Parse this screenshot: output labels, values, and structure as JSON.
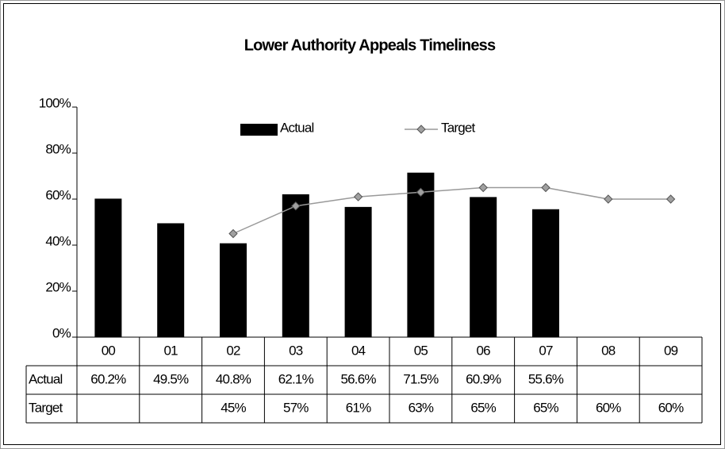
{
  "chart_data": {
    "type": "bar",
    "title": "Lower Authority Appeals Timeliness",
    "categories": [
      "00",
      "01",
      "02",
      "03",
      "04",
      "05",
      "06",
      "07",
      "08",
      "09"
    ],
    "series": [
      {
        "name": "Actual",
        "type": "bar",
        "color": "#000000",
        "values": [
          60.2,
          49.5,
          40.8,
          62.1,
          56.6,
          71.5,
          60.9,
          55.6,
          null,
          null
        ],
        "value_labels": [
          "60.2%",
          "49.5%",
          "40.8%",
          "62.1%",
          "56.6%",
          "71.5%",
          "60.9%",
          "55.6%",
          null,
          null
        ]
      },
      {
        "name": "Target",
        "type": "line",
        "color": "#999999",
        "marker_color": "#a0a0a0",
        "values": [
          null,
          null,
          45,
          57,
          61,
          63,
          65,
          65,
          60,
          60
        ],
        "value_labels": [
          null,
          null,
          "45%",
          "57%",
          "61%",
          "63%",
          "65%",
          "65%",
          "60%",
          "60%"
        ]
      }
    ],
    "ylim": [
      0,
      100
    ],
    "yticks": [
      {
        "value": 0,
        "label": "0%"
      },
      {
        "value": 20,
        "label": "20%"
      },
      {
        "value": 40,
        "label": "40%"
      },
      {
        "value": 60,
        "label": "60%"
      },
      {
        "value": 80,
        "label": "80%"
      },
      {
        "value": 100,
        "label": "100%"
      }
    ],
    "legend": "top",
    "data_table": true
  }
}
